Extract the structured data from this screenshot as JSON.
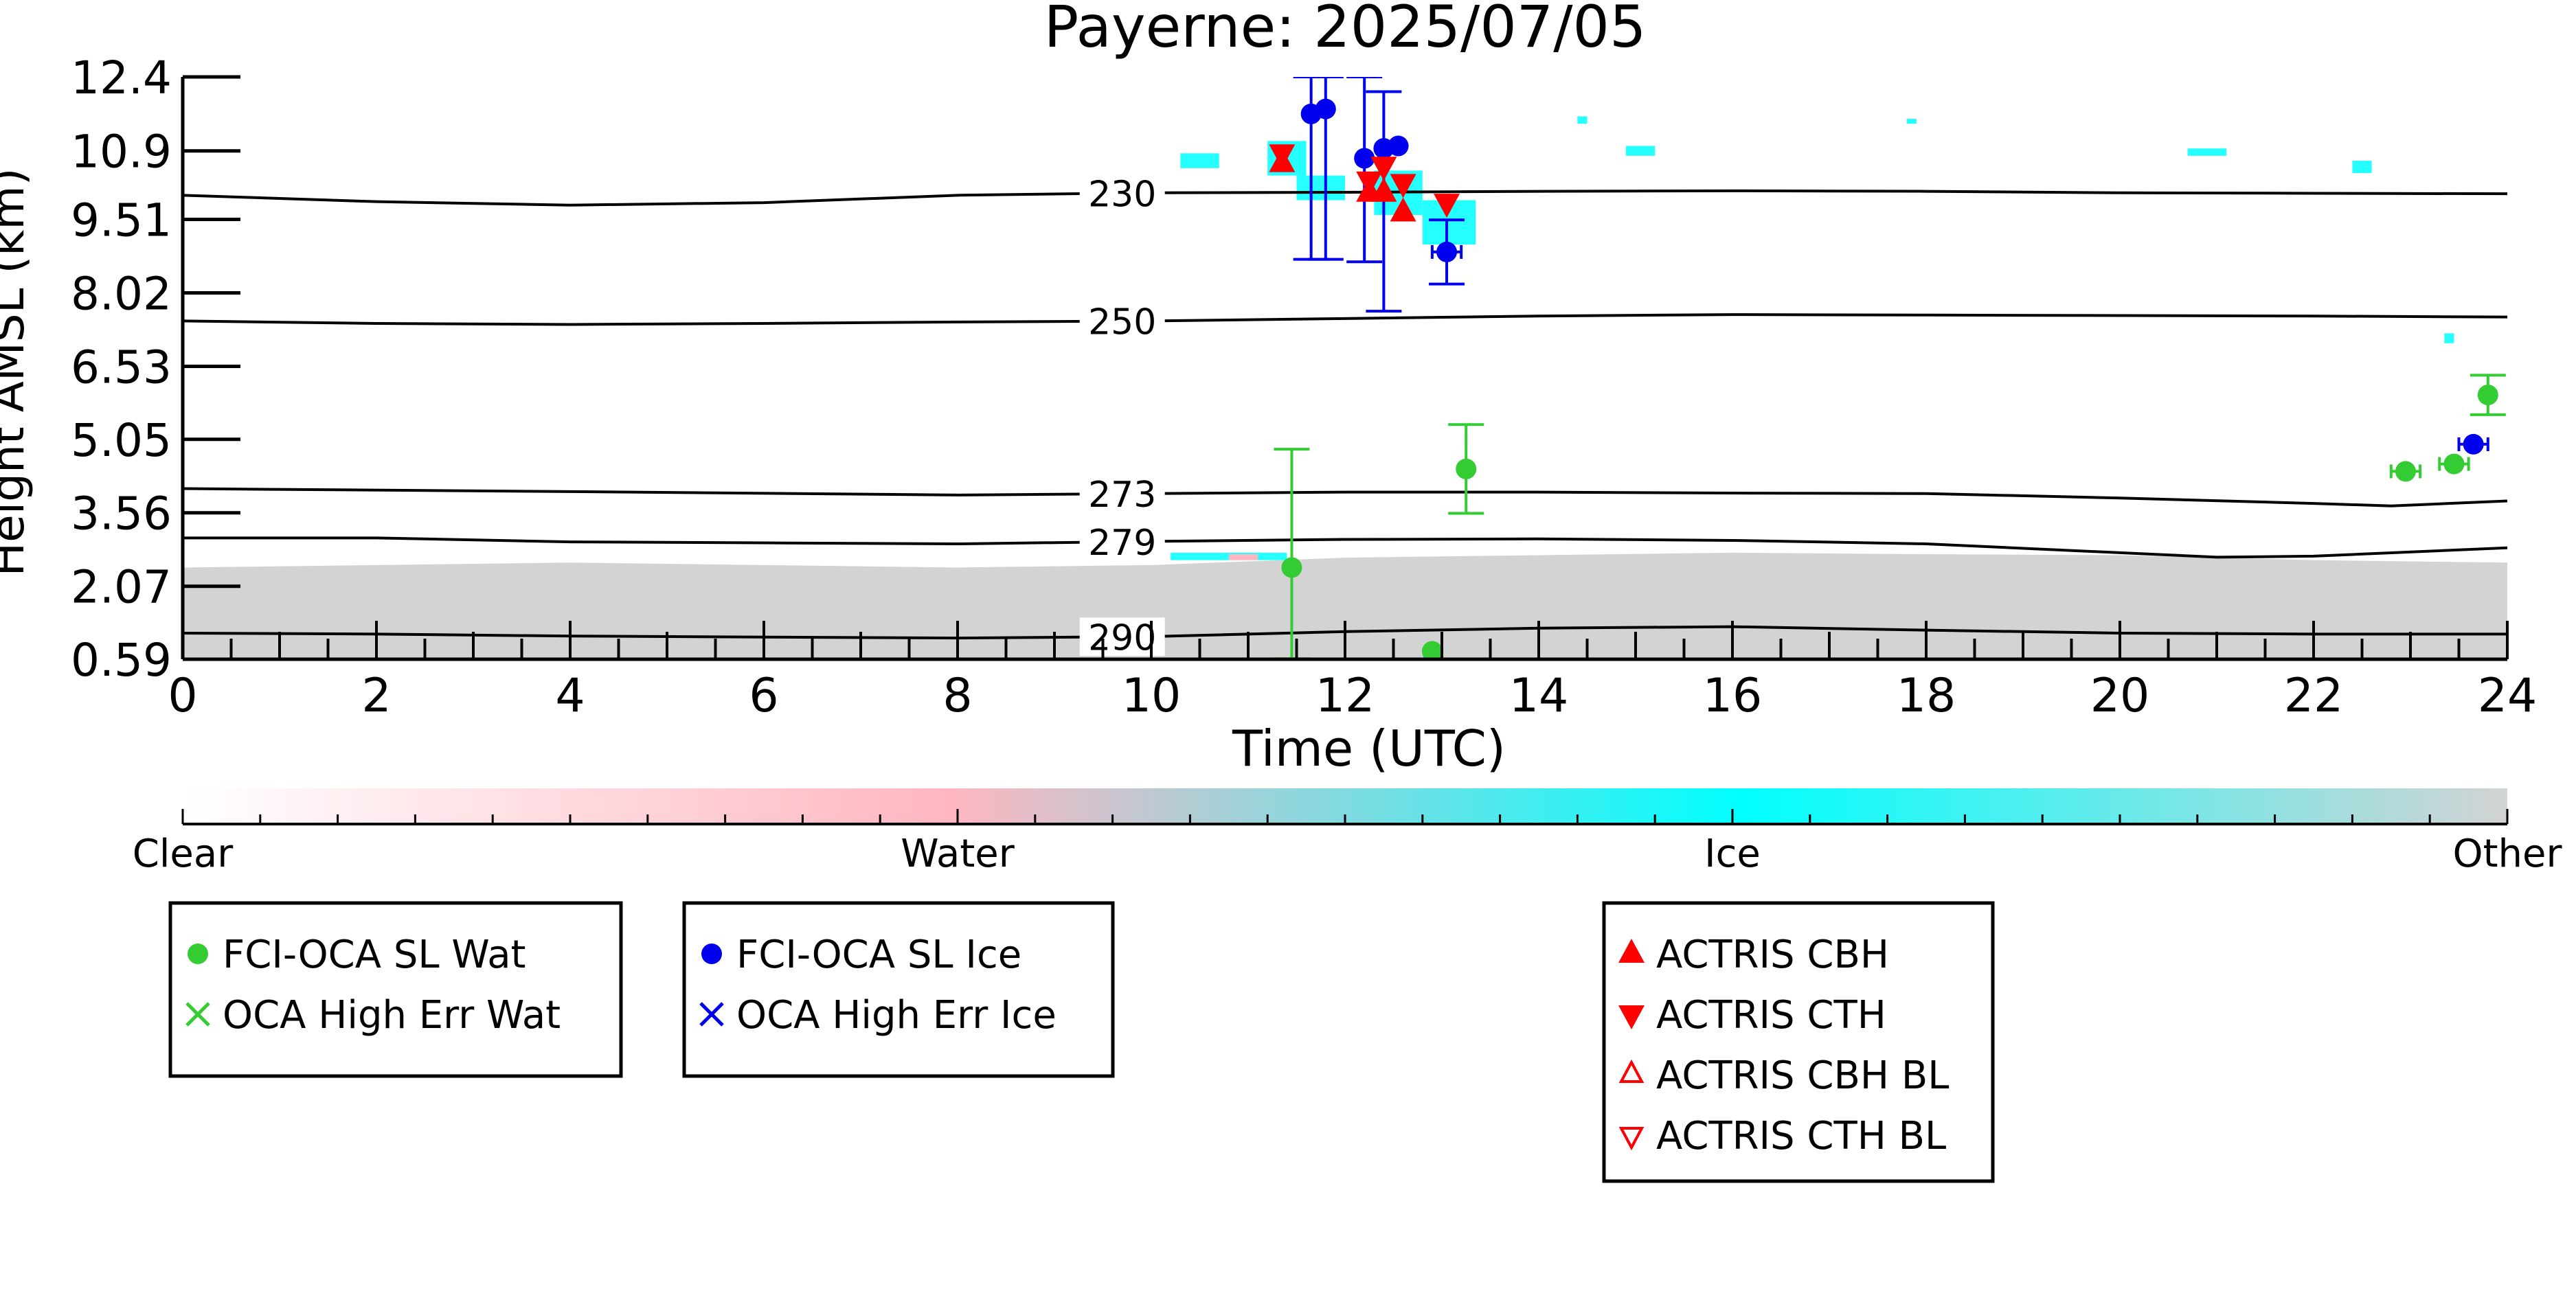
{
  "chart_data": {
    "type": "scatter",
    "title": "Payerne: 2025/07/05",
    "xlabel": "Time (UTC)",
    "ylabel": "Height AMSL (km)",
    "xlim": [
      0,
      24
    ],
    "ylim": [
      0.59,
      12.4
    ],
    "x_ticks": [
      "0",
      "2",
      "4",
      "6",
      "8",
      "10",
      "12",
      "14",
      "16",
      "18",
      "20",
      "22",
      "24"
    ],
    "y_ticks": [
      0.59,
      2.07,
      3.56,
      5.05,
      6.53,
      8.02,
      9.51,
      10.9,
      12.4
    ],
    "y_tick_labels": [
      "0.59",
      "2.07",
      "3.56",
      "5.05",
      "6.53",
      "8.02",
      "9.51",
      "10.9",
      "12.4"
    ],
    "isotherms": [
      {
        "label": "230",
        "label_x": 9.7,
        "points": [
          [
            0,
            10.0
          ],
          [
            2,
            9.87
          ],
          [
            4,
            9.8
          ],
          [
            6,
            9.85
          ],
          [
            8,
            10.0
          ],
          [
            10,
            10.05
          ],
          [
            12,
            10.06
          ],
          [
            14,
            10.08
          ],
          [
            16,
            10.09
          ],
          [
            18,
            10.08
          ],
          [
            20,
            10.05
          ],
          [
            22,
            10.04
          ],
          [
            24,
            10.03
          ]
        ]
      },
      {
        "label": "250",
        "label_x": 9.7,
        "points": [
          [
            0,
            7.45
          ],
          [
            2,
            7.4
          ],
          [
            4,
            7.38
          ],
          [
            6,
            7.4
          ],
          [
            8,
            7.43
          ],
          [
            10,
            7.45
          ],
          [
            12,
            7.5
          ],
          [
            14,
            7.55
          ],
          [
            16,
            7.58
          ],
          [
            18,
            7.57
          ],
          [
            20,
            7.56
          ],
          [
            22,
            7.55
          ],
          [
            24,
            7.53
          ]
        ]
      },
      {
        "label": "273",
        "label_x": 9.7,
        "points": [
          [
            0,
            4.05
          ],
          [
            4,
            3.99
          ],
          [
            8,
            3.92
          ],
          [
            10,
            3.95
          ],
          [
            12,
            3.98
          ],
          [
            14,
            3.98
          ],
          [
            16,
            3.96
          ],
          [
            18,
            3.95
          ],
          [
            20,
            3.86
          ],
          [
            22,
            3.75
          ],
          [
            22.8,
            3.7
          ],
          [
            24,
            3.8
          ]
        ]
      },
      {
        "label": "279",
        "label_x": 9.7,
        "points": [
          [
            0,
            3.05
          ],
          [
            2,
            3.05
          ],
          [
            4,
            2.97
          ],
          [
            6,
            2.95
          ],
          [
            8,
            2.93
          ],
          [
            10,
            2.98
          ],
          [
            12,
            3.02
          ],
          [
            14,
            3.03
          ],
          [
            16,
            3.0
          ],
          [
            18,
            2.93
          ],
          [
            20,
            2.75
          ],
          [
            21,
            2.66
          ],
          [
            22,
            2.68
          ],
          [
            24,
            2.85
          ]
        ]
      },
      {
        "label": "290",
        "label_x": 9.7,
        "points": [
          [
            0,
            1.12
          ],
          [
            2,
            1.1
          ],
          [
            4,
            1.06
          ],
          [
            6,
            1.04
          ],
          [
            8,
            1.02
          ],
          [
            10,
            1.05
          ],
          [
            12,
            1.15
          ],
          [
            14,
            1.22
          ],
          [
            16,
            1.25
          ],
          [
            18,
            1.18
          ],
          [
            20,
            1.12
          ],
          [
            22,
            1.1
          ],
          [
            24,
            1.1
          ]
        ]
      }
    ],
    "colorbar": {
      "labels": [
        "Clear",
        "Water",
        "Ice",
        "Other"
      ],
      "colors": [
        "#ffffff",
        "#ffb6c1",
        "#00ffff",
        "#d3d3d3"
      ]
    },
    "series": [
      {
        "name": "FCI-OCA SL Wat",
        "marker": "circle",
        "color": "#33cc33",
        "points": [
          {
            "x": 11.45,
            "y": 2.45,
            "yerr_low": 0.6,
            "yerr_high": 4.85
          },
          {
            "x": 12.9,
            "y": 0.75
          },
          {
            "x": 13.25,
            "y": 4.45,
            "yerr_low": 3.55,
            "yerr_high": 5.35
          },
          {
            "x": 22.95,
            "y": 4.4,
            "xerr": 0.15
          },
          {
            "x": 23.45,
            "y": 4.55,
            "xerr": 0.15
          },
          {
            "x": 23.8,
            "y": 5.95,
            "yerr_low": 5.55,
            "yerr_high": 6.35
          }
        ]
      },
      {
        "name": "OCA High Err Wat",
        "marker": "x",
        "color": "#33cc33",
        "points": []
      },
      {
        "name": "FCI-OCA SL Ice",
        "marker": "circle",
        "color": "#0000ee",
        "points": [
          {
            "x": 11.65,
            "y": 11.65,
            "yerr_low": 8.7,
            "yerr_high": 12.4
          },
          {
            "x": 11.8,
            "y": 11.75,
            "yerr_low": 8.7,
            "yerr_high": 12.4
          },
          {
            "x": 12.2,
            "y": 10.75,
            "yerr_low": 8.65,
            "yerr_high": 12.4
          },
          {
            "x": 12.4,
            "y": 10.95,
            "yerr_low": 7.65,
            "yerr_high": 12.1
          },
          {
            "x": 12.55,
            "y": 11.0
          },
          {
            "x": 13.05,
            "y": 8.85,
            "yerr_low": 8.2,
            "yerr_high": 9.5,
            "xerr": 0.15
          },
          {
            "x": 23.65,
            "y": 4.95,
            "xerr": 0.15
          }
        ]
      },
      {
        "name": "OCA High Err Ice",
        "marker": "x",
        "color": "#0000ee",
        "points": []
      },
      {
        "name": "ACTRIS CBH",
        "marker": "triangle-up",
        "color": "#ff0000",
        "points": [
          {
            "x": 11.35,
            "y": 10.65
          },
          {
            "x": 12.25,
            "y": 10.05
          },
          {
            "x": 12.4,
            "y": 10.05
          },
          {
            "x": 12.6,
            "y": 9.65
          }
        ]
      },
      {
        "name": "ACTRIS CTH",
        "marker": "triangle-down",
        "color": "#ff0000",
        "points": [
          {
            "x": 11.35,
            "y": 10.85
          },
          {
            "x": 12.25,
            "y": 10.3
          },
          {
            "x": 12.4,
            "y": 10.6
          },
          {
            "x": 12.6,
            "y": 10.25
          },
          {
            "x": 13.05,
            "y": 9.85
          }
        ]
      },
      {
        "name": "ACTRIS CBH BL",
        "marker": "triangle-up-open",
        "color": "#ff0000",
        "points": []
      },
      {
        "name": "ACTRIS CTH BL",
        "marker": "triangle-down-open",
        "color": "#ff0000",
        "points": []
      }
    ],
    "cloud_mask": {
      "other_band": {
        "top": [
          [
            0,
            2.45
          ],
          [
            2,
            2.5
          ],
          [
            4,
            2.55
          ],
          [
            6,
            2.5
          ],
          [
            8,
            2.45
          ],
          [
            10,
            2.5
          ],
          [
            12,
            2.65
          ],
          [
            14,
            2.7
          ],
          [
            16,
            2.75
          ],
          [
            18,
            2.72
          ],
          [
            20,
            2.7
          ],
          [
            22,
            2.6
          ],
          [
            24,
            2.55
          ]
        ]
      },
      "ice_patches": [
        {
          "x0": 10.3,
          "x1": 10.7,
          "y0": 10.55,
          "y1": 10.85
        },
        {
          "x0": 11.2,
          "x1": 11.6,
          "y0": 10.4,
          "y1": 11.1
        },
        {
          "x0": 11.5,
          "x1": 12.0,
          "y0": 9.9,
          "y1": 10.4
        },
        {
          "x0": 12.3,
          "x1": 12.8,
          "y0": 9.6,
          "y1": 10.5
        },
        {
          "x0": 12.8,
          "x1": 13.35,
          "y0": 9.0,
          "y1": 9.9
        },
        {
          "x0": 14.4,
          "x1": 14.5,
          "y0": 11.45,
          "y1": 11.6
        },
        {
          "x0": 14.9,
          "x1": 15.2,
          "y0": 10.8,
          "y1": 11.0
        },
        {
          "x0": 17.8,
          "x1": 17.9,
          "y0": 11.45,
          "y1": 11.55
        },
        {
          "x0": 20.7,
          "x1": 21.1,
          "y0": 10.8,
          "y1": 10.95
        },
        {
          "x0": 22.4,
          "x1": 22.6,
          "y0": 10.45,
          "y1": 10.7
        },
        {
          "x0": 23.35,
          "x1": 23.45,
          "y0": 7.0,
          "y1": 7.2
        },
        {
          "x0": 10.2,
          "x1": 11.4,
          "y0": 2.6,
          "y1": 2.75
        }
      ],
      "water_patches": [
        {
          "x0": 10.8,
          "x1": 11.1,
          "y0": 2.6,
          "y1": 2.72
        }
      ]
    }
  }
}
